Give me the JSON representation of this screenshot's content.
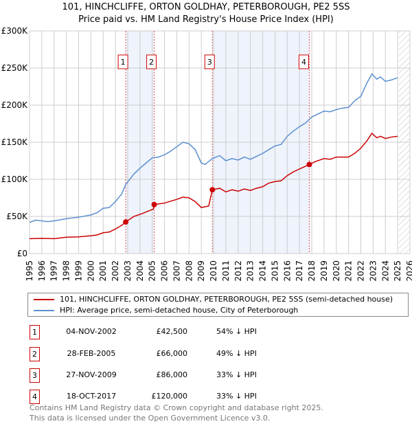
{
  "chart_data": {
    "type": "line",
    "title": "101, HINCHCLIFFE, ORTON GOLDHAY, PETERBOROUGH, PE2 5SS",
    "subtitle": "Price paid vs. HM Land Registry's House Price Index (HPI)",
    "xlim": [
      1995,
      2026
    ],
    "ylim": [
      0,
      300000
    ],
    "x_ticks": [
      "1995",
      "1996",
      "1997",
      "1998",
      "1999",
      "2000",
      "2001",
      "2002",
      "2003",
      "2004",
      "2005",
      "2006",
      "2007",
      "2008",
      "2009",
      "2010",
      "2011",
      "2012",
      "2013",
      "2014",
      "2015",
      "2016",
      "2017",
      "2018",
      "2019",
      "2020",
      "2021",
      "2022",
      "2023",
      "2024",
      "2025",
      "2026"
    ],
    "y_ticks": [
      {
        "v": 0,
        "label": "£0"
      },
      {
        "v": 50000,
        "label": "£50K"
      },
      {
        "v": 100000,
        "label": "£100K"
      },
      {
        "v": 150000,
        "label": "£150K"
      },
      {
        "v": 200000,
        "label": "£200K"
      },
      {
        "v": 250000,
        "label": "£250K"
      },
      {
        "v": 300000,
        "label": "£300K"
      }
    ],
    "grid": true,
    "shaded_ranges": [
      [
        2002.84,
        2005.16
      ],
      [
        2009.9,
        2017.8
      ]
    ],
    "hatched_from": 2025.1,
    "series": [
      {
        "name": "101, HINCHCLIFFE, ORTON GOLDHAY, PETERBOROUGH, PE2 5SS (semi-detached house)",
        "color": "#cc0000",
        "points": [
          [
            1995,
            20000
          ],
          [
            1996,
            20500
          ],
          [
            1997,
            20000
          ],
          [
            1998,
            22000
          ],
          [
            1999,
            22500
          ],
          [
            2000,
            24000
          ],
          [
            2000.5,
            25000
          ],
          [
            2001,
            28000
          ],
          [
            2001.5,
            29000
          ],
          [
            2002,
            33000
          ],
          [
            2002.5,
            38000
          ],
          [
            2002.84,
            42500
          ],
          [
            2003.5,
            50000
          ],
          [
            2004.2,
            54000
          ],
          [
            2005.1,
            60000
          ],
          [
            2005.16,
            66000
          ],
          [
            2006,
            68000
          ],
          [
            2007,
            73000
          ],
          [
            2007.5,
            76000
          ],
          [
            2008,
            75000
          ],
          [
            2008.5,
            70000
          ],
          [
            2009,
            62000
          ],
          [
            2009.6,
            64000
          ],
          [
            2009.9,
            86000
          ],
          [
            2010.5,
            88000
          ],
          [
            2011,
            83000
          ],
          [
            2011.5,
            86000
          ],
          [
            2012,
            84000
          ],
          [
            2012.5,
            87000
          ],
          [
            2013,
            85000
          ],
          [
            2013.5,
            88000
          ],
          [
            2014,
            90000
          ],
          [
            2014.5,
            95000
          ],
          [
            2015,
            97000
          ],
          [
            2015.5,
            98000
          ],
          [
            2016,
            105000
          ],
          [
            2016.5,
            110000
          ],
          [
            2017,
            114000
          ],
          [
            2017.8,
            120000
          ],
          [
            2018.3,
            124000
          ],
          [
            2019,
            128000
          ],
          [
            2019.5,
            127000
          ],
          [
            2020,
            130000
          ],
          [
            2021,
            130000
          ],
          [
            2021.5,
            135000
          ],
          [
            2022,
            142000
          ],
          [
            2022.5,
            152000
          ],
          [
            2022.9,
            162000
          ],
          [
            2023.3,
            156000
          ],
          [
            2023.6,
            158000
          ],
          [
            2024,
            155000
          ],
          [
            2024.5,
            157000
          ],
          [
            2025,
            158000
          ]
        ]
      },
      {
        "name": "HPI: Average price, semi-detached house, City of Peterborough",
        "color": "#5b8fd0",
        "points": [
          [
            1995,
            42000
          ],
          [
            1995.5,
            45000
          ],
          [
            1996.5,
            43000
          ],
          [
            1997,
            44000
          ],
          [
            1998,
            47000
          ],
          [
            1999,
            49000
          ],
          [
            2000,
            52000
          ],
          [
            2000.5,
            55000
          ],
          [
            2001,
            61000
          ],
          [
            2001.5,
            62000
          ],
          [
            2002,
            70000
          ],
          [
            2002.5,
            80000
          ],
          [
            2002.84,
            93000
          ],
          [
            2003.5,
            107000
          ],
          [
            2004,
            115000
          ],
          [
            2004.5,
            122000
          ],
          [
            2005,
            129000
          ],
          [
            2005.5,
            130000
          ],
          [
            2006,
            133000
          ],
          [
            2006.5,
            138000
          ],
          [
            2007,
            144000
          ],
          [
            2007.5,
            150000
          ],
          [
            2008,
            148000
          ],
          [
            2008.5,
            140000
          ],
          [
            2009,
            122000
          ],
          [
            2009.3,
            120000
          ],
          [
            2009.9,
            128000
          ],
          [
            2010.5,
            132000
          ],
          [
            2011,
            125000
          ],
          [
            2011.5,
            128000
          ],
          [
            2012,
            126000
          ],
          [
            2012.5,
            130000
          ],
          [
            2013,
            127000
          ],
          [
            2013.5,
            131000
          ],
          [
            2014,
            135000
          ],
          [
            2014.5,
            140000
          ],
          [
            2015,
            145000
          ],
          [
            2015.5,
            147000
          ],
          [
            2016,
            158000
          ],
          [
            2016.5,
            165000
          ],
          [
            2017,
            171000
          ],
          [
            2017.5,
            176000
          ],
          [
            2018,
            184000
          ],
          [
            2018.5,
            188000
          ],
          [
            2019,
            192000
          ],
          [
            2019.5,
            191000
          ],
          [
            2020,
            194000
          ],
          [
            2020.5,
            196000
          ],
          [
            2021,
            197000
          ],
          [
            2021.5,
            206000
          ],
          [
            2022,
            212000
          ],
          [
            2022.5,
            230000
          ],
          [
            2022.9,
            242000
          ],
          [
            2023.3,
            235000
          ],
          [
            2023.6,
            238000
          ],
          [
            2024,
            232000
          ],
          [
            2024.5,
            234000
          ],
          [
            2025,
            237000
          ]
        ]
      }
    ],
    "sales": [
      {
        "label": "1",
        "x": 2002.84,
        "y": 42500,
        "date": "04-NOV-2002",
        "price": "£42,500",
        "pct": "54% ↓ HPI"
      },
      {
        "label": "2",
        "x": 2005.16,
        "y": 66000,
        "date": "28-FEB-2005",
        "price": "£66,000",
        "pct": "49% ↓ HPI"
      },
      {
        "label": "3",
        "x": 2009.9,
        "y": 86000,
        "date": "27-NOV-2009",
        "price": "£86,000",
        "pct": "33% ↓ HPI"
      },
      {
        "label": "4",
        "x": 2017.8,
        "y": 120000,
        "date": "18-OCT-2017",
        "price": "£120,000",
        "pct": "33% ↓ HPI"
      }
    ]
  },
  "footer": {
    "line1": "Contains HM Land Registry data © Crown copyright and database right 2025.",
    "line2": "This data is licensed under the Open Government Licence v3.0."
  }
}
